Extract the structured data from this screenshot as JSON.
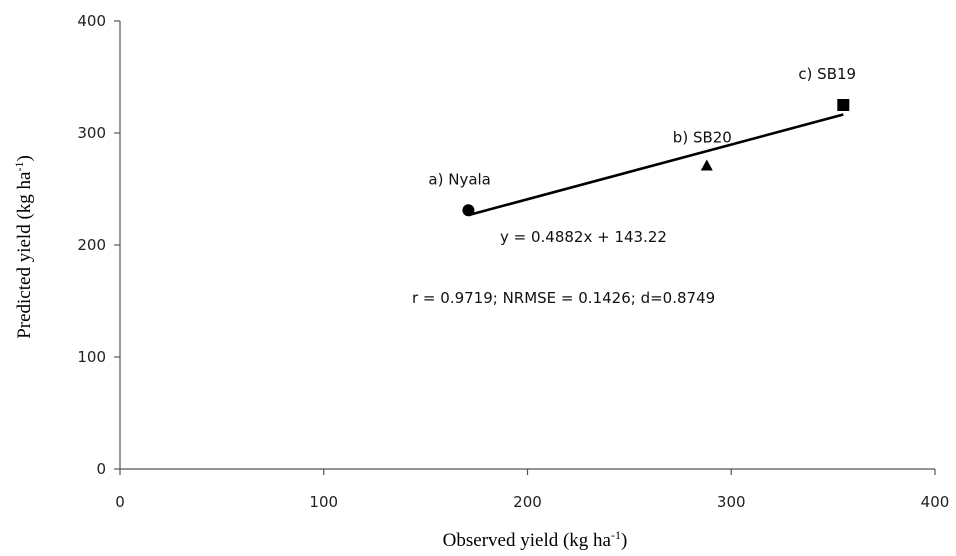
{
  "chart_data": {
    "type": "scatter",
    "xlabel": {
      "text": "Observed yield (kg ha",
      "sup": "-1",
      "suffix": ")"
    },
    "ylabel": {
      "text": "Predicted yield  (kg ha",
      "sup": "-1",
      "suffix": ")"
    },
    "xlim": [
      0,
      400
    ],
    "ylim": [
      0,
      400
    ],
    "xticks": [
      "0",
      "100",
      "200",
      "300",
      "400"
    ],
    "yticks": [
      "0",
      "100",
      "200",
      "300",
      "400"
    ],
    "grid": false,
    "points": [
      {
        "label": "a) Nyala",
        "x": 171,
        "y": 231,
        "marker": "circle"
      },
      {
        "label": "b) SB20",
        "x": 288,
        "y": 271,
        "marker": "triangle"
      },
      {
        "label": "c) SB19",
        "x": 355,
        "y": 325,
        "marker": "square"
      }
    ],
    "trendline": {
      "x_start": 171,
      "x_end": 355,
      "slope": 0.4882,
      "intercept": 143.22
    },
    "annotations": {
      "equation": "y = 0.4882x + 143.22",
      "stats": "r = 0.9719; NRMSE = 0.1426; d=0.8749"
    }
  }
}
